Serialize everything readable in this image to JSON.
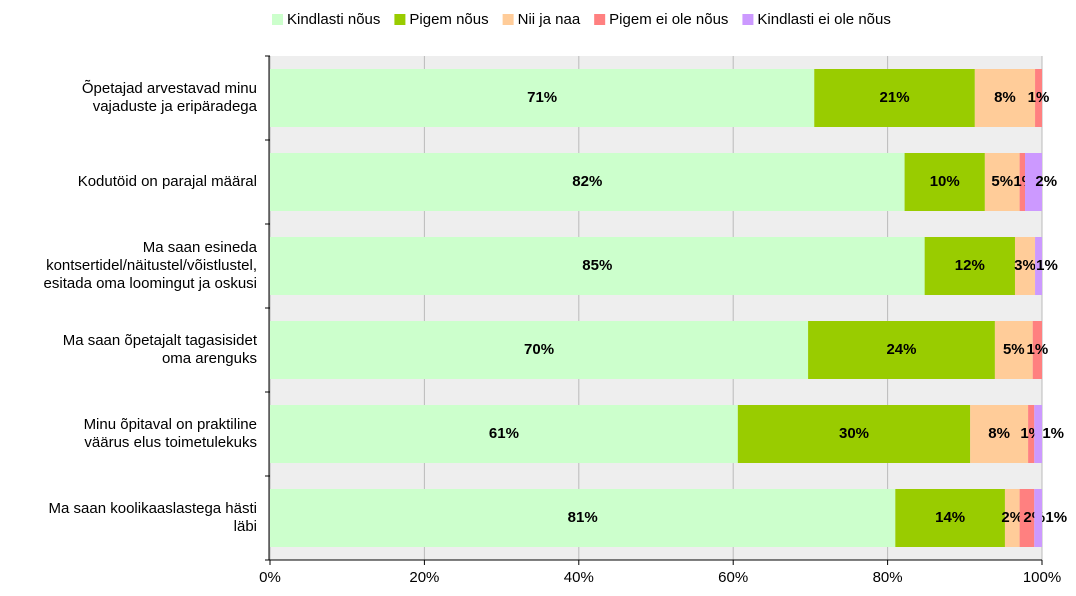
{
  "chart_data": {
    "type": "bar",
    "orientation": "horizontal",
    "stacked": true,
    "categories": [
      "Õpetajad arvestavad minu\nvajaduste ja eripäradega",
      "Kodutöid on parajal määral",
      "Ma saan esineda\nkontsertidel/näitustel/võistlustel,\nesitada oma loomingut ja oskusi",
      "Ma saan õpetajalt tagasisidet\noma arenguks",
      "Minu õpitaval on praktiline\nväärus elus toimetulekuks",
      "Ma saan koolikaaslastega hästi\nläbi"
    ],
    "series": [
      {
        "name": "Kindlasti nõus",
        "color": "#ccffcc",
        "values": [
          70.5,
          82.2,
          84.8,
          69.7,
          60.6,
          81.0
        ],
        "value_labels": [
          "71%",
          "82%",
          "85%",
          "70%",
          "61%",
          "81%"
        ]
      },
      {
        "name": "Pigem nõus",
        "color": "#99cc00",
        "values": [
          20.8,
          10.4,
          11.7,
          24.2,
          30.1,
          14.2
        ],
        "value_labels": [
          "21%",
          "10%",
          "12%",
          "24%",
          "30%",
          "14%"
        ]
      },
      {
        "name": "Nii ja naa",
        "color": "#ffcc99",
        "values": [
          7.8,
          4.5,
          2.6,
          4.9,
          7.5,
          1.9
        ],
        "value_labels": [
          "8%",
          "5%",
          "3%",
          "5%",
          "8%",
          "2%"
        ]
      },
      {
        "name": "Pigem ei ole nõus",
        "color": "#ff8080",
        "values": [
          0.9,
          0.7,
          0,
          1.2,
          0.8,
          1.9
        ],
        "value_labels": [
          "1%",
          "1%",
          null,
          "1%",
          "1%",
          "2%"
        ]
      },
      {
        "name": "Kindlasti ei ole nõus",
        "color": "#cc99ff",
        "values": [
          0,
          2.2,
          0.9,
          0,
          1.0,
          1.0
        ],
        "value_labels": [
          null,
          "2%",
          "1%",
          null,
          "1%",
          "1%"
        ]
      }
    ],
    "xlim": [
      0,
      100
    ],
    "xticks": [
      {
        "value": 0,
        "label": "0%"
      },
      {
        "value": 20,
        "label": "20%"
      },
      {
        "value": 40,
        "label": "40%"
      },
      {
        "value": 60,
        "label": "60%"
      },
      {
        "value": 80,
        "label": "80%"
      },
      {
        "value": 100,
        "label": "100%"
      }
    ],
    "grid": true,
    "legend": "top"
  }
}
